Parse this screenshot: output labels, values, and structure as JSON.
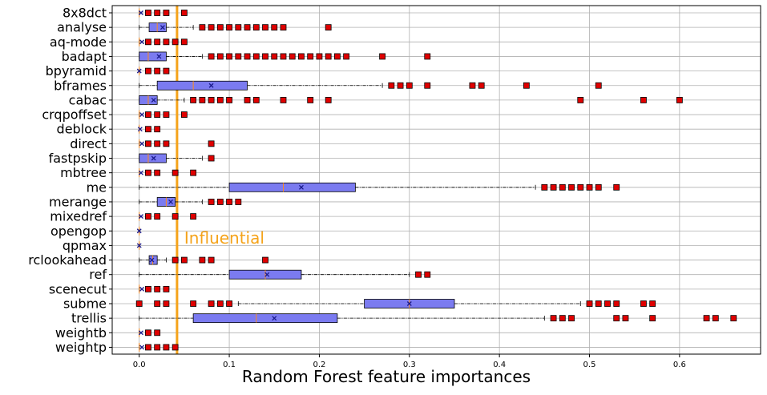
{
  "chart_data": {
    "type": "boxplot",
    "orientation": "horizontal",
    "xlabel": "Random Forest feature importances",
    "xlim": [
      -0.03,
      0.69
    ],
    "xticks": [
      0.0,
      0.1,
      0.2,
      0.3,
      0.4,
      0.5,
      0.6
    ],
    "xtick_labels": [
      "0.0",
      "0.1",
      "0.2",
      "0.3",
      "0.4",
      "0.5",
      "0.6"
    ],
    "grid": true,
    "threshold": {
      "x": 0.042,
      "label": "Influential",
      "color": "#f5a31a"
    },
    "colors": {
      "box": "#7b7bf0",
      "median": "#ff8c1a",
      "outlier": "#e00000",
      "mean_marker": "#1a1a8c"
    },
    "categories": [
      "8x8dct",
      "analyse",
      "aq-mode",
      "badapt",
      "bpyramid",
      "bframes",
      "cabac",
      "crqpoffset",
      "deblock",
      "direct",
      "fastpskip",
      "mbtree",
      "me",
      "merange",
      "mixedref",
      "opengop",
      "qpmax",
      "rclookahead",
      "ref",
      "scenecut",
      "subme",
      "trellis",
      "weightb",
      "weightp"
    ],
    "boxes": [
      {
        "q1": 0.0,
        "median": 0.0,
        "q3": 0.0,
        "wlo": 0.0,
        "whi": 0.0,
        "mean": 0.002,
        "outliers": [
          0.01,
          0.02,
          0.03,
          0.05
        ]
      },
      {
        "q1": 0.011,
        "median": 0.02,
        "q3": 0.03,
        "wlo": 0.0,
        "whi": 0.06,
        "mean": 0.026,
        "outliers": [
          0.07,
          0.08,
          0.09,
          0.1,
          0.11,
          0.12,
          0.13,
          0.14,
          0.15,
          0.16,
          0.21
        ]
      },
      {
        "q1": 0.0,
        "median": 0.0,
        "q3": 0.0,
        "wlo": 0.0,
        "whi": 0.0,
        "mean": 0.003,
        "outliers": [
          0.01,
          0.02,
          0.03,
          0.04,
          0.05
        ]
      },
      {
        "q1": 0.0,
        "median": 0.01,
        "q3": 0.03,
        "wlo": 0.0,
        "whi": 0.07,
        "mean": 0.022,
        "outliers": [
          0.08,
          0.09,
          0.1,
          0.11,
          0.12,
          0.13,
          0.14,
          0.15,
          0.16,
          0.17,
          0.18,
          0.19,
          0.2,
          0.21,
          0.22,
          0.23,
          0.27,
          0.32
        ]
      },
      {
        "q1": 0.0,
        "median": 0.0,
        "q3": 0.0,
        "wlo": 0.0,
        "whi": 0.0,
        "mean": 0.0,
        "outliers": [
          0.01,
          0.02,
          0.03
        ]
      },
      {
        "q1": 0.02,
        "median": 0.06,
        "q3": 0.12,
        "wlo": 0.0,
        "whi": 0.27,
        "mean": 0.08,
        "outliers": [
          0.28,
          0.29,
          0.3,
          0.32,
          0.37,
          0.38,
          0.43,
          0.51
        ]
      },
      {
        "q1": 0.0,
        "median": 0.01,
        "q3": 0.02,
        "wlo": 0.0,
        "whi": 0.05,
        "mean": 0.016,
        "outliers": [
          0.06,
          0.07,
          0.08,
          0.09,
          0.1,
          0.12,
          0.13,
          0.16,
          0.19,
          0.21,
          0.49,
          0.56,
          0.6
        ]
      },
      {
        "q1": 0.0,
        "median": 0.0,
        "q3": 0.0,
        "wlo": 0.0,
        "whi": 0.0,
        "mean": 0.003,
        "outliers": [
          0.01,
          0.02,
          0.03,
          0.05
        ]
      },
      {
        "q1": 0.0,
        "median": 0.0,
        "q3": 0.0,
        "wlo": 0.0,
        "whi": 0.0,
        "mean": 0.001,
        "outliers": [
          0.01,
          0.02
        ]
      },
      {
        "q1": 0.0,
        "median": 0.0,
        "q3": 0.0,
        "wlo": 0.0,
        "whi": 0.0,
        "mean": 0.003,
        "outliers": [
          0.01,
          0.02,
          0.03,
          0.08
        ]
      },
      {
        "q1": 0.0,
        "median": 0.01,
        "q3": 0.03,
        "wlo": 0.0,
        "whi": 0.07,
        "mean": 0.016,
        "outliers": [
          0.08
        ]
      },
      {
        "q1": 0.0,
        "median": 0.0,
        "q3": 0.0,
        "wlo": 0.0,
        "whi": 0.0,
        "mean": 0.002,
        "outliers": [
          0.01,
          0.02,
          0.04,
          0.06
        ]
      },
      {
        "q1": 0.1,
        "median": 0.16,
        "q3": 0.24,
        "wlo": 0.0,
        "whi": 0.44,
        "mean": 0.18,
        "outliers": [
          0.45,
          0.46,
          0.47,
          0.48,
          0.49,
          0.5,
          0.51,
          0.53
        ]
      },
      {
        "q1": 0.02,
        "median": 0.03,
        "q3": 0.04,
        "wlo": 0.0,
        "whi": 0.07,
        "mean": 0.035,
        "outliers": [
          0.08,
          0.09,
          0.1,
          0.11
        ]
      },
      {
        "q1": 0.0,
        "median": 0.0,
        "q3": 0.0,
        "wlo": 0.0,
        "whi": 0.0,
        "mean": 0.002,
        "outliers": [
          0.01,
          0.02,
          0.04,
          0.06
        ]
      },
      {
        "q1": 0.0,
        "median": 0.0,
        "q3": 0.0,
        "wlo": 0.0,
        "whi": 0.0,
        "mean": 0.0,
        "outliers": []
      },
      {
        "q1": 0.0,
        "median": 0.0,
        "q3": 0.0,
        "wlo": 0.0,
        "whi": 0.0,
        "mean": 0.0,
        "outliers": []
      },
      {
        "q1": 0.011,
        "median": 0.015,
        "q3": 0.02,
        "wlo": 0.0,
        "whi": 0.03,
        "mean": 0.014,
        "outliers": [
          0.04,
          0.05,
          0.07,
          0.08,
          0.14
        ]
      },
      {
        "q1": 0.1,
        "median": 0.14,
        "q3": 0.18,
        "wlo": 0.0,
        "whi": 0.3,
        "mean": 0.142,
        "outliers": [
          0.31,
          0.32
        ]
      },
      {
        "q1": 0.0,
        "median": 0.0,
        "q3": 0.0,
        "wlo": 0.0,
        "whi": 0.0,
        "mean": 0.003,
        "outliers": [
          0.01,
          0.02,
          0.03
        ]
      },
      {
        "q1": 0.25,
        "median": 0.3,
        "q3": 0.35,
        "wlo": 0.11,
        "whi": 0.49,
        "mean": 0.3,
        "outliers": [
          0.0,
          0.02,
          0.03,
          0.06,
          0.08,
          0.09,
          0.1,
          0.5,
          0.51,
          0.52,
          0.53,
          0.56,
          0.57
        ]
      },
      {
        "q1": 0.06,
        "median": 0.13,
        "q3": 0.22,
        "wlo": 0.0,
        "whi": 0.45,
        "mean": 0.15,
        "outliers": [
          0.46,
          0.47,
          0.48,
          0.53,
          0.54,
          0.57,
          0.63,
          0.64,
          0.66
        ]
      },
      {
        "q1": 0.0,
        "median": 0.0,
        "q3": 0.0,
        "wlo": 0.0,
        "whi": 0.0,
        "mean": 0.002,
        "outliers": [
          0.01,
          0.02
        ]
      },
      {
        "q1": 0.0,
        "median": 0.0,
        "q3": 0.0,
        "wlo": 0.0,
        "whi": 0.0,
        "mean": 0.003,
        "outliers": [
          0.01,
          0.02,
          0.03,
          0.04
        ]
      }
    ]
  }
}
